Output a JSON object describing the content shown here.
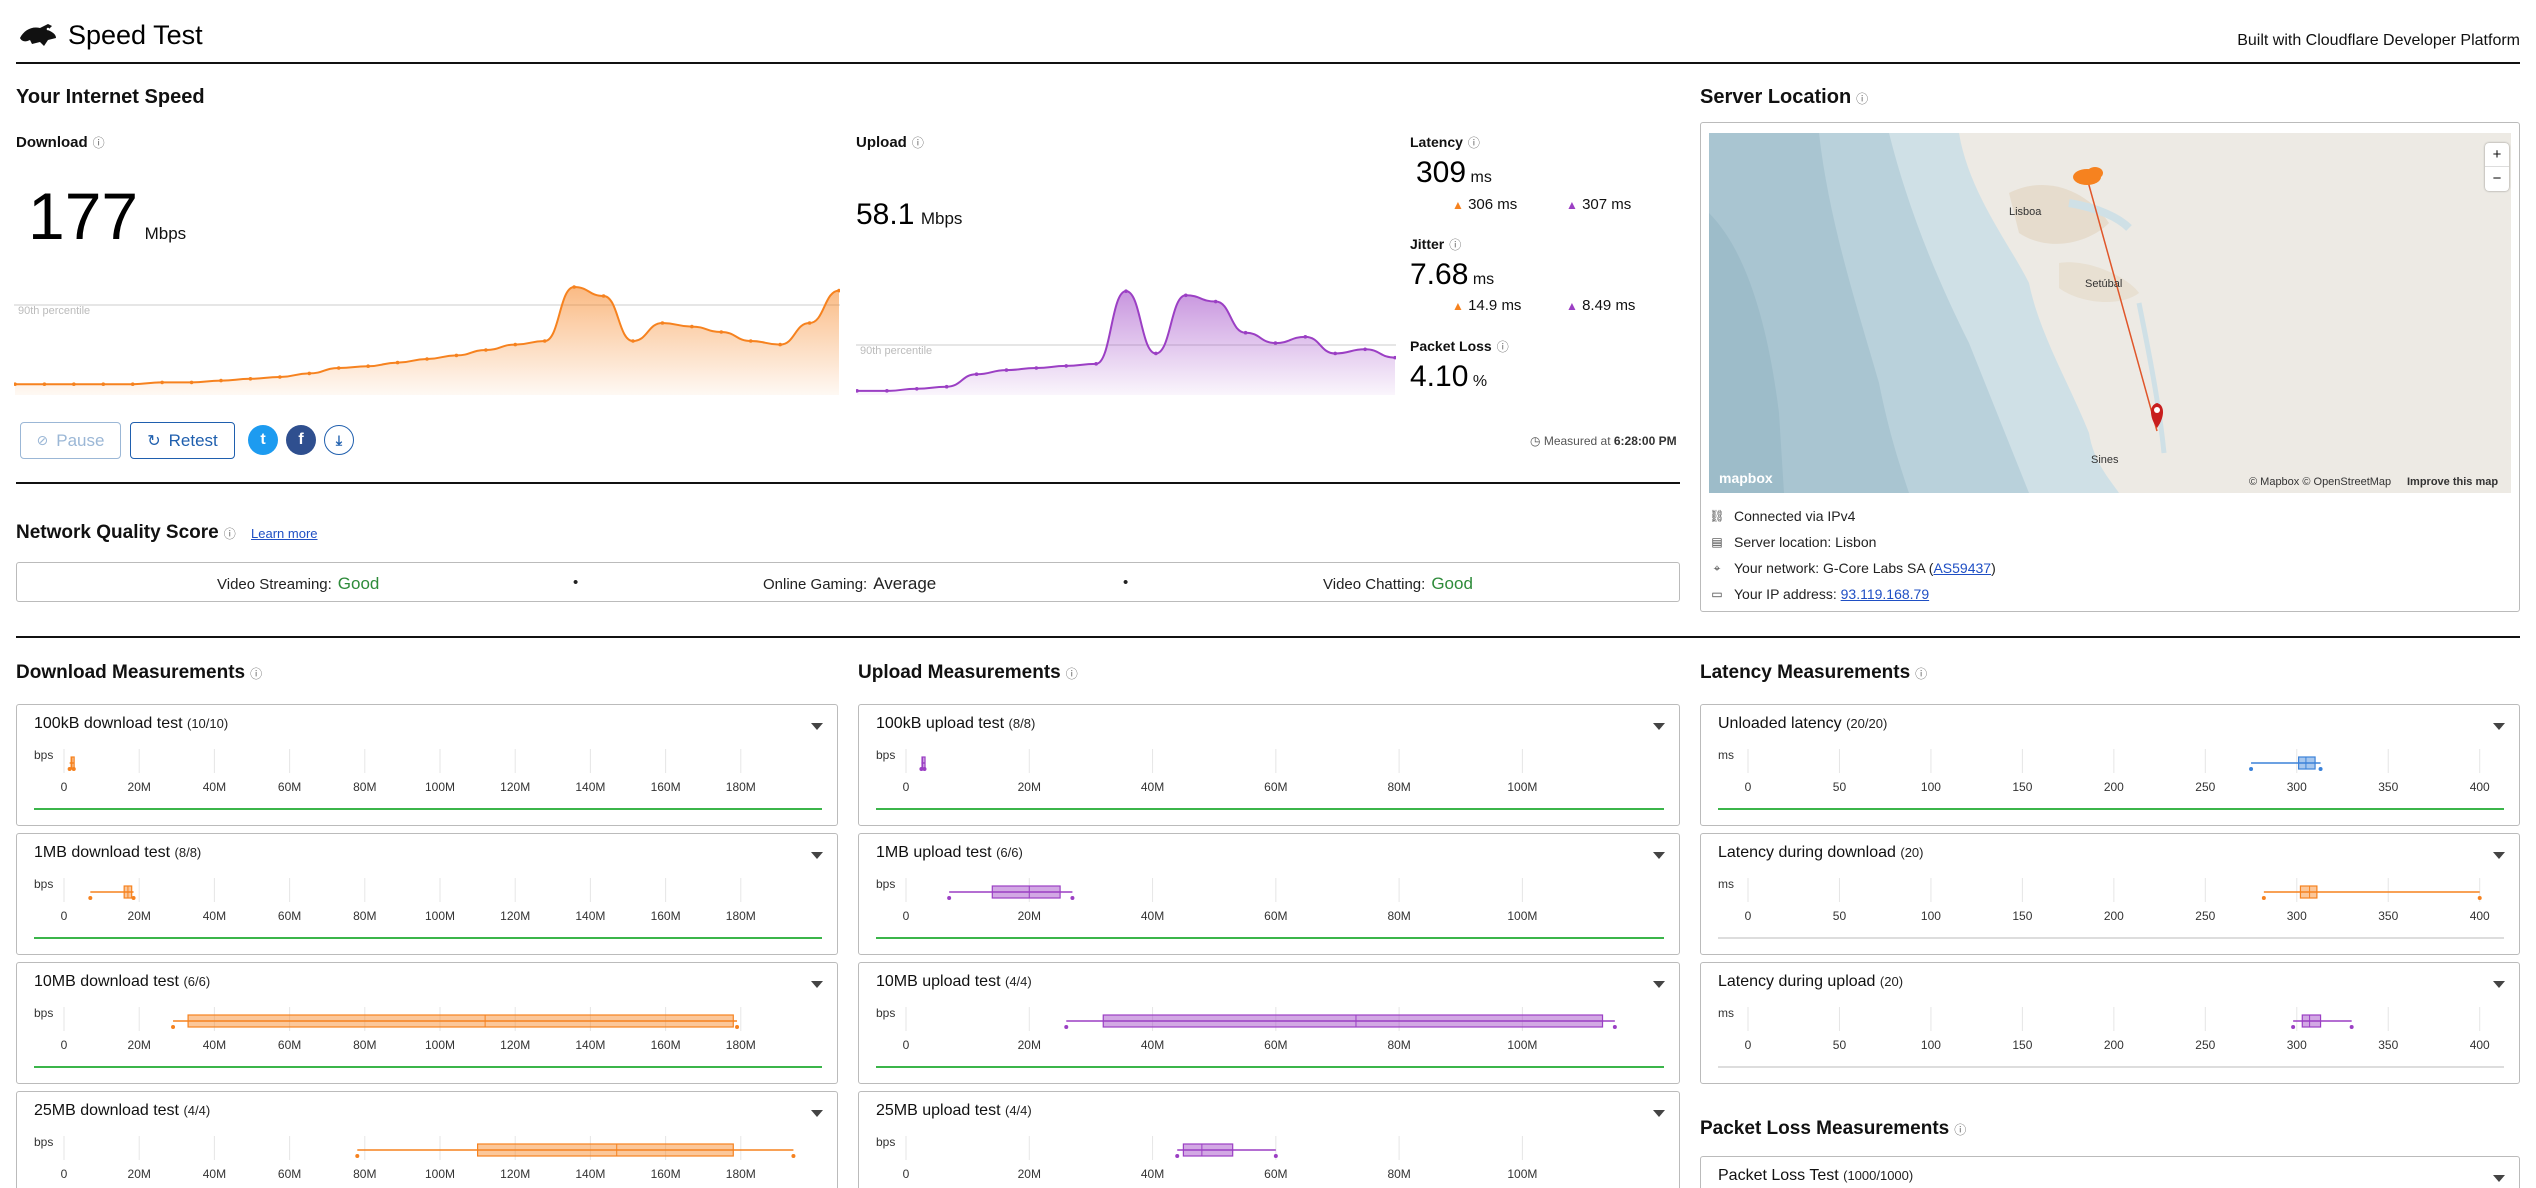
{
  "header": {
    "title": "Speed Test",
    "built_with": "Built with Cloudflare Developer Platform"
  },
  "speed": {
    "section_title": "Your Internet Speed",
    "download": {
      "label": "Download",
      "value": "177",
      "unit": "Mbps",
      "percentile_label": "90th percentile"
    },
    "upload": {
      "label": "Upload",
      "value": "58.1",
      "unit": "Mbps",
      "percentile_label": "90th percentile"
    },
    "latency": {
      "label": "Latency",
      "value": "309",
      "unit": "ms",
      "down_value": "306",
      "down_unit": "ms",
      "up_value": "307",
      "up_unit": "ms"
    },
    "jitter": {
      "label": "Jitter",
      "value": "7.68",
      "unit": "ms",
      "down_value": "14.9",
      "down_unit": "ms",
      "up_value": "8.49",
      "up_unit": "ms"
    },
    "packet_loss": {
      "label": "Packet Loss",
      "value": "4.10",
      "unit": "%"
    },
    "measured_at_prefix": "Measured at",
    "measured_at": "6:28:00 PM",
    "buttons": {
      "pause": "Pause",
      "retest": "Retest"
    }
  },
  "network_quality": {
    "title": "Network Quality Score",
    "learn_more": "Learn more",
    "items": [
      {
        "label": "Video Streaming:",
        "value": "Good",
        "color": "#2e8b3a"
      },
      {
        "label": "Online Gaming:",
        "value": "Average",
        "color": "#222222"
      },
      {
        "label": "Video Chatting:",
        "value": "Good",
        "color": "#2e8b3a"
      }
    ]
  },
  "server": {
    "title": "Server Location",
    "map": {
      "cities": [
        "Lisboa",
        "Setúbal",
        "Sines"
      ],
      "attribution": "© Mapbox © OpenStreetMap",
      "improve": "Improve this map",
      "logo": "mapbox",
      "zoom_in": "+",
      "zoom_out": "−"
    },
    "connected": "Connected via IPv4",
    "location": "Server location: Lisbon",
    "network_prefix": "Your network: G-Core Labs SA (",
    "network_as": "AS59437",
    "network_suffix": ")",
    "ip_prefix": "Your IP address: ",
    "ip": "93.119.168.79"
  },
  "download_measurements": {
    "title": "Download Measurements",
    "unit": "bps",
    "ticks": [
      "0",
      "20M",
      "40M",
      "60M",
      "80M",
      "100M",
      "120M",
      "140M",
      "160M",
      "180M"
    ],
    "tests": [
      {
        "name": "100kB download test",
        "count": "(10/10)"
      },
      {
        "name": "1MB download test",
        "count": "(8/8)"
      },
      {
        "name": "10MB download test",
        "count": "(6/6)"
      },
      {
        "name": "25MB download test",
        "count": "(4/4)"
      }
    ]
  },
  "upload_measurements": {
    "title": "Upload Measurements",
    "unit": "bps",
    "ticks": [
      "0",
      "20M",
      "40M",
      "60M",
      "80M",
      "100M"
    ],
    "tests": [
      {
        "name": "100kB upload test",
        "count": "(8/8)"
      },
      {
        "name": "1MB upload test",
        "count": "(6/6)"
      },
      {
        "name": "10MB upload test",
        "count": "(4/4)"
      },
      {
        "name": "25MB upload test",
        "count": "(4/4)"
      }
    ]
  },
  "latency_measurements": {
    "title": "Latency Measurements",
    "unit": "ms",
    "ticks": [
      "0",
      "50",
      "100",
      "150",
      "200",
      "250",
      "300",
      "350",
      "400"
    ],
    "tests": [
      {
        "name": "Unloaded latency",
        "count": "(20/20)"
      },
      {
        "name": "Latency during download",
        "count": "(20)"
      },
      {
        "name": "Latency during upload",
        "count": "(20)"
      }
    ]
  },
  "packet_loss_measurements": {
    "title": "Packet Loss Measurements",
    "test": {
      "name": "Packet Loss Test",
      "count": "(1000/1000)"
    }
  },
  "colors": {
    "download": "#f6821f",
    "upload": "#9b3fc4",
    "latency": "#3b82d9",
    "good": "#2e8b3a",
    "link": "#1f4fc4",
    "button": "#1f5fae"
  },
  "chart_data": [
    {
      "type": "area",
      "series": [
        {
          "values": [
            6,
            6,
            6,
            6,
            6,
            7,
            7,
            8,
            9,
            10,
            12,
            15,
            16,
            18,
            20,
            22,
            25,
            28,
            30,
            60,
            55,
            30,
            40,
            38,
            35,
            30,
            28,
            40,
            58
          ]
        }
      ],
      "annotation": "90th percentile"
    },
    {
      "type": "area",
      "series": [
        {
          "values": [
            2,
            2,
            3,
            4,
            10,
            12,
            13,
            14,
            15,
            50,
            20,
            48,
            45,
            30,
            25,
            28,
            20,
            22,
            18
          ]
        }
      ],
      "annotation": "90th percentile"
    },
    {
      "type": "box",
      "xlabel": "bps",
      "boxes": [
        {
          "name": "100kB download test",
          "min": 1.5,
          "q1": 1.9,
          "median": 2.1,
          "q3": 2.3,
          "max": 2.6
        },
        {
          "name": "1MB download test",
          "min": 7,
          "q1": 16,
          "median": 17,
          "q3": 18,
          "max": 18.5
        },
        {
          "name": "10MB download test",
          "min": 29,
          "q1": 33,
          "median": 112,
          "q3": 178,
          "max": 179
        },
        {
          "name": "25MB download test",
          "min": 78,
          "q1": 110,
          "median": 147,
          "q3": 178,
          "max": 194
        }
      ]
    },
    {
      "type": "box",
      "xlabel": "bps",
      "boxes": [
        {
          "name": "100kB upload test",
          "min": 2.5,
          "q1": 2.6,
          "median": 2.7,
          "q3": 2.8,
          "max": 3
        },
        {
          "name": "1MB upload test",
          "min": 7,
          "q1": 14,
          "median": 20,
          "q3": 25,
          "max": 27
        },
        {
          "name": "10MB upload test",
          "min": 26,
          "q1": 32,
          "median": 73,
          "q3": 113,
          "max": 115
        },
        {
          "name": "25MB upload test",
          "min": 44,
          "q1": 45,
          "median": 48,
          "q3": 53,
          "max": 60
        }
      ]
    },
    {
      "type": "box",
      "xlabel": "ms",
      "boxes": [
        {
          "name": "Unloaded latency",
          "min": 275,
          "q1": 301,
          "median": 305,
          "q3": 310,
          "max": 313
        },
        {
          "name": "Latency during download",
          "min": 282,
          "q1": 302,
          "median": 307,
          "q3": 311,
          "max": 400
        },
        {
          "name": "Latency during upload",
          "min": 298,
          "q1": 303,
          "median": 307,
          "q3": 313,
          "max": 330
        }
      ]
    }
  ]
}
